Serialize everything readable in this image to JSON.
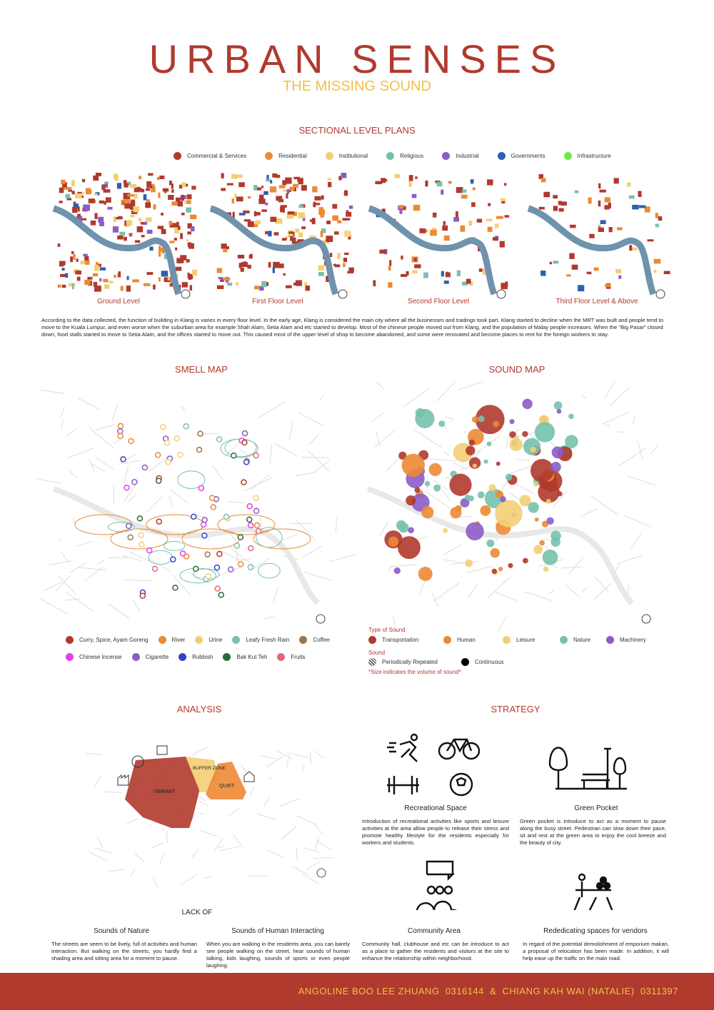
{
  "header": {
    "title": "URBAN SENSES",
    "subtitle": "THE MISSING SOUND"
  },
  "sectional": {
    "heading": "SECTIONAL LEVEL PLANS",
    "legend": [
      {
        "label": "Commercial & Services",
        "color": "#b03a2e"
      },
      {
        "label": "Residential",
        "color": "#ec8a35"
      },
      {
        "label": "Institutional",
        "color": "#f3cf74"
      },
      {
        "label": "Religious",
        "color": "#76c1ad"
      },
      {
        "label": "Industrial",
        "color": "#8b5cc8"
      },
      {
        "label": "Governments",
        "color": "#2e5fb0"
      },
      {
        "label": "Infrastructure",
        "color": "#6de84a"
      }
    ],
    "plans": [
      "Ground Level",
      "First Floor Level",
      "Second Floor Level",
      "Third Floor Level & Above"
    ],
    "paragraph": "According to the data collected, the function of building in Klang is varies in every floor level. In the early age, Klang is considered the main city where all the businesses and tradings took part. Klang started to decline when the MRT was built and people tend to move to the Kuala Lumpur, and even worse when the suburban area for example Shah Alam, Setia Alam and etc started to develop. Most of the chinese people moved out from Klang, and the population of Malay people increases. When the \"Big Pasar\" closed down, food stalls started to move to Setia Alam, and the offices started to move out. This caused most of the upper level of shop to become abandoned, and some were renovated and become places to rent for the foreign workers to stay."
  },
  "smell": {
    "heading": "SMELL MAP",
    "legend": [
      {
        "label": "Curry, Spice, Ayam Goreng",
        "color": "#b03a2e"
      },
      {
        "label": "River",
        "color": "#ec8a35"
      },
      {
        "label": "Urine",
        "color": "#f3cf74"
      },
      {
        "label": "Leafy Fresh Rain",
        "color": "#76c1ad"
      },
      {
        "label": "Coffee",
        "color": "#9c7550"
      },
      {
        "label": "Chinese Incense",
        "color": "#e83ce8"
      },
      {
        "label": "Cigarette",
        "color": "#8b5cc8"
      },
      {
        "label": "Rubbish",
        "color": "#3342c8"
      },
      {
        "label": "Bak Kut Teh",
        "color": "#2d6b35"
      },
      {
        "label": "Fruits",
        "color": "#e06a78"
      }
    ]
  },
  "sound": {
    "heading": "SOUND MAP",
    "type_heading": "Type of Sound",
    "types": [
      {
        "label": "Transportation",
        "color": "#b03a2e"
      },
      {
        "label": "Human",
        "color": "#ec8a35"
      },
      {
        "label": "Leisure",
        "color": "#f3cf74"
      },
      {
        "label": "Nature",
        "color": "#76c1ad"
      },
      {
        "label": "Machinery",
        "color": "#8b5cc8"
      }
    ],
    "sound_heading": "Sound",
    "periodic": "Periodically Repeated",
    "continuous": "Continuous",
    "note": "*Size indicates the volume of sound*"
  },
  "analysis": {
    "heading": "ANALYSIS",
    "zones": {
      "vibrant": "VIBRANT",
      "buffer": "BUFFER ZONE",
      "quiet": "QUIET"
    },
    "lack_of": "LACK OF",
    "items": [
      {
        "title": "Sounds of Nature",
        "text": "The streets are seem to be lively, full of activities and human interaction. But walking on the streets, you hardly find a shading area and sitting area for a moment to pause."
      },
      {
        "title": "Sounds of Human Interacting",
        "text": "When you are walking in the residents area, you can barely see people walking on the street, hear sounds of human talking, kids laughing, sounds of sports or even people laughing."
      }
    ]
  },
  "strategy": {
    "heading": "STRATEGY",
    "items": [
      {
        "title": "Recreational Space",
        "text": "Introduction of recreational activities like sports and leisure activities at the area allow people to release their stress and promote healthy lifestyle for the residents especially for workers and students."
      },
      {
        "title": "Green Pocket",
        "text": "Green pocket is introduce to act as a moment to pause along the busy street. Pedestrian can slow down their pace, sit and rest at the green area to enjoy the cool breeze and the beauty of city."
      },
      {
        "title": "Community Area",
        "text": "Community hall, clubhouse and etc can be introduce to act as a place to gather the residents and visitors at the site to enhance the relationship within neighborhood."
      },
      {
        "title": "Rededicating spaces for vendors",
        "text": "In regard of the potential demolishment of emporium makan, a proposal of relocation has been made. In addition, it will help ease up the traffic on the main road."
      }
    ]
  },
  "footer": {
    "credits": "ANGOLINE BOO LEE ZHUANG  0316144  &  CHIANG KAH WAI (NATALIE)  0311397"
  }
}
